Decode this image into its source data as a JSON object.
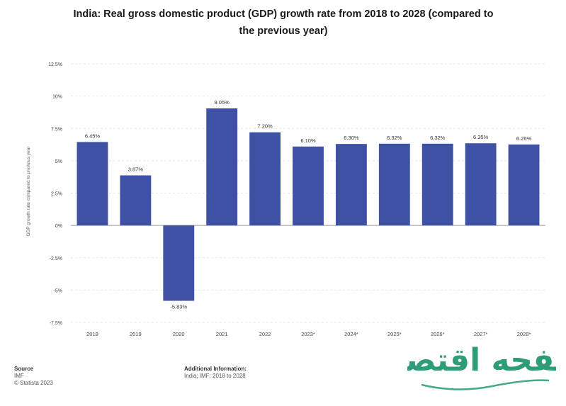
{
  "page": {
    "title_line1": "India: Real gross domestic product (GDP) growth rate from 2018 to 2028 (compared to",
    "title_line2": "the previous year)"
  },
  "footer": {
    "source_heading": "Source",
    "source_name": "IMF",
    "source_site": "© Statista 2023",
    "info_heading": "Additional Information:",
    "info_text": "India; IMF; 2018 to 2028"
  },
  "chart_data": {
    "type": "bar",
    "title": "India: Real gross domestic product (GDP) growth rate from 2018 to 2028 (compared to the previous year)",
    "ylabel": "GDP growth rate compared to previous year",
    "xlabel": "",
    "categories": [
      "2018",
      "2019",
      "2020",
      "2021",
      "2022",
      "2023*",
      "2024*",
      "2025*",
      "2026*",
      "2027*",
      "2028*"
    ],
    "values": [
      6.45,
      3.87,
      -5.83,
      9.05,
      7.2,
      6.1,
      6.3,
      6.32,
      6.32,
      6.35,
      6.26
    ],
    "value_labels": [
      "6.45%",
      "3.87%",
      "-5.83%",
      "9.05%",
      "7.20%",
      "6.10%",
      "6.30%",
      "6.32%",
      "6.32%",
      "6.35%",
      "6.26%"
    ],
    "yticks": [
      -7.5,
      -5,
      -2.5,
      0,
      2.5,
      5,
      7.5,
      10,
      12.5
    ],
    "ytick_labels": [
      "-7.5%",
      "-5%",
      "-2.5%",
      "0%",
      "2.5%",
      "5%",
      "7.5%",
      "10%",
      "12.5%"
    ],
    "ylim": [
      -7.5,
      12.5
    ],
    "grid": true,
    "colors": {
      "bar": "#3f51a5",
      "grid": "#e6e6e6",
      "axis_text": "#444444"
    }
  },
  "watermark": {
    "text": "صفحه اقتصاد",
    "color": "#17926a"
  }
}
